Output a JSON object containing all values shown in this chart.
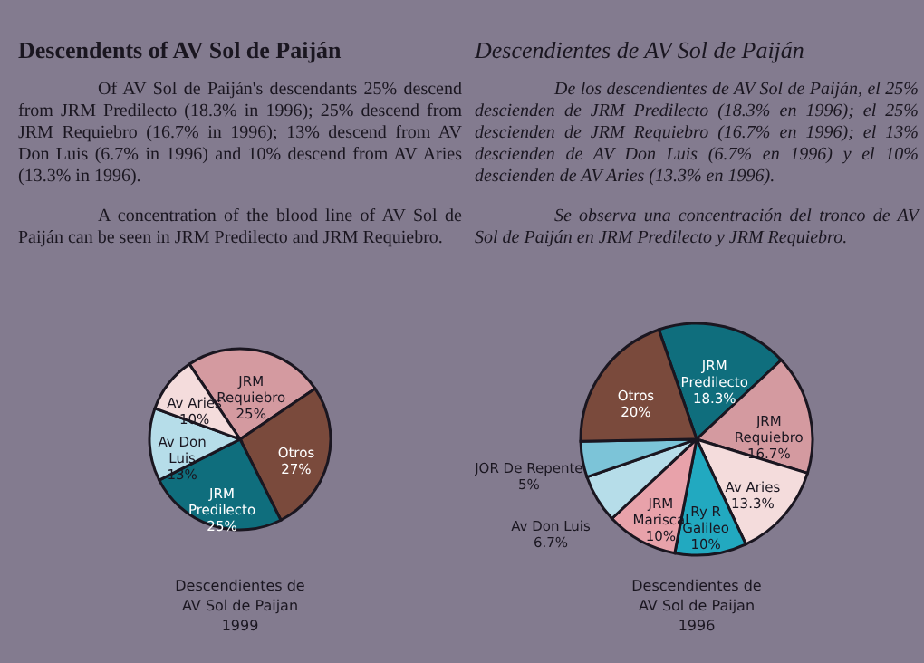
{
  "chart_data": [
    {
      "type": "pie",
      "title": "Descendents of AV Sol de Paiján",
      "annotations": [
        "Of AV Sol de Paiján's descendants 25% descend from JRM Predilecto (18.3% in 1996);  25% descend from JRM Requiebro (16.7% in 1996); 13% descend from AV Don Luis (6.7% in 1996) and 10% descend from AV Aries (13.3% in 1996).",
        "A concentration of the blood line of AV Sol de Paiján can be seen in JRM Predilecto and JRM Requiebro.",
        "Descendientes de\nAV Sol de Paijan\n1999"
      ],
      "categories": [
        "JRM Requiebro",
        "Otros",
        "JRM Predilecto",
        "Av Don Luis",
        "Av Aries"
      ],
      "values": [
        25,
        27,
        25,
        13,
        10
      ],
      "value_labels": [
        "25%",
        "27%",
        "25%",
        "13%",
        "10%"
      ],
      "colors": [
        "#d49aa0",
        "#7a4a3c",
        "#0f6e7d",
        "#b6dde9",
        "#f4dcdc"
      ]
    },
    {
      "type": "pie",
      "title": "Descendientes de AV Sol de Paiján",
      "annotations": [
        "De los descendientes de AV Sol de Paiján, el 25% descienden de JRM Predilecto (18.3% en 1996); el 25% descienden de JRM Requiebro (16.7% en 1996); el 13% descienden de AV Don Luis (6.7% en 1996) y el 10% descienden de AV Aries (13.3% en 1996).",
        "Se observa una concentración del tronco de AV Sol de Paiján en JRM Predilecto y JRM Requiebro.",
        "Descendientes de\nAV Sol de Paijan\n1996"
      ],
      "categories": [
        "JRM Predilecto",
        "JRM Requiebro",
        "Av Aries",
        "Ry R Galileo",
        "JRM Mariscal",
        "Av Don Luis",
        "JOR De Repente",
        "Otros"
      ],
      "values": [
        18.3,
        16.7,
        13.3,
        10,
        10,
        6.7,
        5,
        20
      ],
      "value_labels": [
        "18.3%",
        "16.7%",
        "13.3%",
        "10%",
        "10%",
        "6.7%",
        "5%",
        "20%"
      ],
      "colors": [
        "#0f6e7d",
        "#d49aa0",
        "#f4dcdc",
        "#22a9c0",
        "#e8a2aa",
        "#b6dde9",
        "#7cc4d8",
        "#7a4a3c"
      ]
    }
  ]
}
